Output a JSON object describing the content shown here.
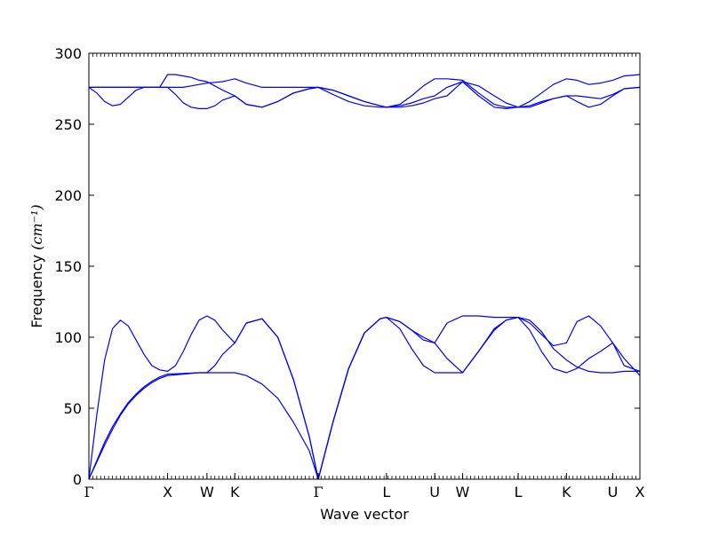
{
  "chart_data": {
    "type": "line",
    "xlabel": "Wave vector",
    "ylabel": "Frequency ",
    "ylabel_unit": "(cm⁻¹)",
    "ylim": [
      0,
      300
    ],
    "yticks": [
      0,
      50,
      100,
      150,
      200,
      250,
      300
    ],
    "xlim": [
      0,
      7.0
    ],
    "high_symmetry_points": [
      {
        "label": "Γ",
        "x": 0.0
      },
      {
        "label": "X",
        "x": 1.0
      },
      {
        "label": "W",
        "x": 1.5
      },
      {
        "label": "K",
        "x": 1.854
      },
      {
        "label": "Γ",
        "x": 2.914
      },
      {
        "label": "L",
        "x": 3.78
      },
      {
        "label": "U",
        "x": 4.393
      },
      {
        "label": "W",
        "x": 4.747
      },
      {
        "label": "L",
        "x": 5.454
      },
      {
        "label": "K",
        "x": 6.067
      },
      {
        "label": "U",
        "x": 6.655
      },
      {
        "label": "X",
        "x": 7.0
      }
    ],
    "line_color": "#0000ff",
    "grid": false,
    "series": [
      {
        "x": [
          0,
          0.1,
          0.2,
          0.3,
          0.4,
          0.5,
          0.6,
          0.7,
          0.8,
          0.9,
          1.0,
          1.1,
          1.2,
          1.3,
          1.4,
          1.5,
          1.6,
          1.7,
          1.854,
          2.0,
          2.2,
          2.4,
          2.6,
          2.8,
          2.914,
          3.1,
          3.3,
          3.5,
          3.7,
          3.78,
          3.95,
          4.1,
          4.25,
          4.393,
          4.55,
          4.747,
          4.95,
          5.15,
          5.3,
          5.454,
          5.6,
          5.75,
          5.9,
          6.067,
          6.2,
          6.35,
          6.5,
          6.655,
          6.8,
          7.0
        ],
        "y": [
          0,
          12,
          24,
          35,
          45,
          53,
          59,
          64,
          68,
          71,
          73,
          73.5,
          74,
          74.5,
          75,
          75,
          75,
          75,
          75,
          73,
          67,
          57,
          40,
          20,
          0,
          40,
          78,
          103,
          113,
          114,
          111,
          105,
          98,
          96,
          85,
          75,
          90,
          106,
          112,
          114,
          105,
          90,
          78,
          75,
          78,
          85,
          90,
          96,
          85,
          73
        ]
      },
      {
        "x": [
          0,
          0.1,
          0.2,
          0.3,
          0.4,
          0.5,
          0.6,
          0.7,
          0.8,
          0.9,
          1.0,
          1.1,
          1.2,
          1.3,
          1.4,
          1.5,
          1.6,
          1.7,
          1.854,
          2.0,
          2.2,
          2.4,
          2.6,
          2.8,
          2.914,
          3.1,
          3.3,
          3.5,
          3.7,
          3.78,
          3.95,
          4.1,
          4.25,
          4.393,
          4.55,
          4.747,
          4.95,
          5.15,
          5.3,
          5.454,
          5.6,
          5.75,
          5.9,
          6.067,
          6.2,
          6.35,
          6.5,
          6.655,
          6.8,
          7.0
        ],
        "y": [
          0,
          13,
          26,
          37,
          46,
          54,
          60,
          65,
          69,
          72,
          74,
          74.2,
          74.5,
          74.8,
          75,
          75,
          80,
          88,
          96,
          110,
          113,
          100,
          70,
          30,
          0,
          40,
          78,
          103,
          113,
          114,
          106,
          92,
          80,
          75,
          75,
          75,
          90,
          105,
          112,
          114,
          112,
          104,
          92,
          84,
          79,
          76,
          75,
          75,
          76,
          76
        ]
      },
      {
        "x": [
          0,
          0.1,
          0.2,
          0.3,
          0.4,
          0.5,
          0.6,
          0.7,
          0.8,
          0.9,
          1.0,
          1.1,
          1.2,
          1.3,
          1.4,
          1.5,
          1.6,
          1.7,
          1.854,
          2.0,
          2.2,
          2.4,
          2.6,
          2.8,
          2.914,
          3.1,
          3.3,
          3.5,
          3.7,
          3.78,
          3.95,
          4.1,
          4.25,
          4.393,
          4.55,
          4.747,
          4.95,
          5.15,
          5.3,
          5.454,
          5.6,
          5.75,
          5.9,
          6.067,
          6.2,
          6.35,
          6.5,
          6.655,
          6.8,
          7.0
        ],
        "y": [
          0,
          45,
          84,
          106,
          112,
          108,
          98,
          88,
          80,
          77,
          76,
          80,
          90,
          102,
          112,
          115,
          112,
          105,
          96,
          110,
          113,
          100,
          70,
          30,
          0,
          40,
          78,
          103,
          113,
          114,
          111,
          105,
          100,
          96,
          110,
          115,
          115,
          114,
          114,
          114,
          110,
          102,
          94,
          96,
          111,
          115,
          108,
          96,
          80,
          76
        ]
      },
      {
        "x": [
          0,
          0.1,
          0.2,
          0.3,
          0.4,
          0.5,
          0.6,
          0.7,
          0.8,
          0.9,
          1.0,
          1.1,
          1.2,
          1.3,
          1.4,
          1.5,
          1.6,
          1.7,
          1.854,
          2.0,
          2.2,
          2.4,
          2.6,
          2.8,
          2.914,
          3.1,
          3.3,
          3.5,
          3.7,
          3.78,
          3.95,
          4.1,
          4.25,
          4.393,
          4.55,
          4.747,
          4.95,
          5.15,
          5.3,
          5.454,
          5.6,
          5.75,
          5.9,
          6.067,
          6.2,
          6.35,
          6.5,
          6.655,
          6.8,
          7.0
        ],
        "y": [
          276,
          272,
          266,
          263,
          264,
          269,
          274,
          276,
          276,
          276,
          276,
          276,
          276,
          277,
          278,
          279,
          279.5,
          280,
          282,
          279,
          276,
          276,
          276,
          276,
          276,
          271,
          266,
          263,
          262,
          262,
          263,
          265,
          268,
          270,
          276,
          280,
          277,
          270,
          265,
          262,
          263,
          266,
          268,
          270,
          270,
          269,
          268,
          271,
          275,
          276
        ]
      },
      {
        "x": [
          0,
          0.1,
          0.2,
          0.3,
          0.4,
          0.5,
          0.6,
          0.7,
          0.8,
          0.9,
          1.0,
          1.1,
          1.2,
          1.3,
          1.4,
          1.5,
          1.6,
          1.7,
          1.854,
          2.0,
          2.2,
          2.4,
          2.6,
          2.8,
          2.914,
          3.1,
          3.3,
          3.5,
          3.7,
          3.78,
          3.95,
          4.1,
          4.25,
          4.393,
          4.55,
          4.747,
          4.95,
          5.15,
          5.3,
          5.454,
          5.6,
          5.75,
          5.9,
          6.067,
          6.2,
          6.35,
          6.5,
          6.655,
          6.8,
          7.0
        ],
        "y": [
          276,
          276,
          276,
          276,
          276,
          276,
          276,
          276,
          276,
          276,
          276,
          271,
          265,
          262,
          261,
          261,
          263,
          267,
          270,
          264,
          262,
          266,
          272,
          275,
          276,
          274,
          270,
          266,
          263,
          262,
          264,
          270,
          277,
          282,
          282,
          281,
          272,
          264,
          262,
          262,
          262,
          265,
          268,
          270,
          266,
          262,
          264,
          270,
          275,
          276
        ]
      },
      {
        "x": [
          0,
          0.1,
          0.2,
          0.3,
          0.4,
          0.5,
          0.6,
          0.7,
          0.8,
          0.9,
          1.0,
          1.1,
          1.2,
          1.3,
          1.4,
          1.5,
          1.6,
          1.7,
          1.854,
          2.0,
          2.2,
          2.4,
          2.6,
          2.8,
          2.914,
          3.1,
          3.3,
          3.5,
          3.7,
          3.78,
          3.95,
          4.1,
          4.25,
          4.393,
          4.55,
          4.747,
          4.95,
          5.15,
          5.3,
          5.454,
          5.6,
          5.75,
          5.9,
          6.067,
          6.2,
          6.35,
          6.5,
          6.655,
          6.8,
          7.0
        ],
        "y": [
          276,
          276,
          276,
          276,
          276,
          276,
          276,
          276,
          276,
          276,
          285,
          285,
          284,
          283,
          281,
          280,
          277,
          274,
          270,
          264,
          262,
          266,
          272,
          275,
          276,
          274,
          270,
          266,
          263,
          262,
          262,
          263,
          265,
          268,
          270,
          280,
          270,
          262,
          261,
          262,
          266,
          272,
          278,
          282,
          281,
          278,
          279,
          281,
          284,
          285
        ]
      }
    ]
  }
}
